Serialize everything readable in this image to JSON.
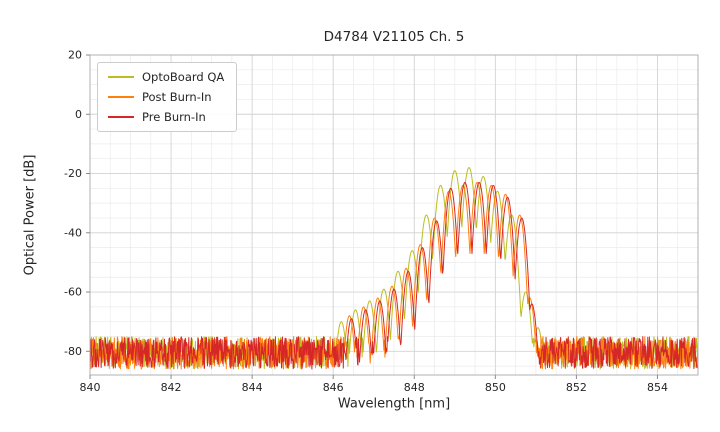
{
  "chart_data": {
    "type": "line",
    "title": "D4784 V21105 Ch. 5",
    "xlabel": "Wavelength [nm]",
    "ylabel": "Optical Power [dB]",
    "xlim": [
      840,
      855
    ],
    "ylim": [
      -88,
      20
    ],
    "xticks": [
      840,
      842,
      844,
      846,
      848,
      850,
      852,
      854
    ],
    "yticks": [
      20,
      0,
      -20,
      -40,
      -60,
      -80
    ],
    "minor_x_step": 0.5,
    "minor_y_step": 5,
    "grid": true,
    "legend_position": "upper left",
    "noise_floor_db": -80.5,
    "noise_half_range_db": 5.5,
    "mode_spacing_nm": 0.35,
    "sample_step_nm": 0.0125,
    "series": [
      {
        "name": "OptoBoard QA",
        "color": "#bcbd22",
        "dip_db": 20,
        "modes": [
          [
            846.2,
            -70
          ],
          [
            846.55,
            -66
          ],
          [
            846.9,
            -63
          ],
          [
            847.25,
            -59
          ],
          [
            847.6,
            -53
          ],
          [
            847.95,
            -46
          ],
          [
            848.3,
            -34
          ],
          [
            848.65,
            -24
          ],
          [
            849.0,
            -19
          ],
          [
            849.35,
            -18
          ],
          [
            849.7,
            -21
          ],
          [
            850.05,
            -26
          ],
          [
            850.4,
            -34
          ],
          [
            850.75,
            -60
          ],
          [
            851.05,
            -72
          ]
        ]
      },
      {
        "name": "Post Burn-In",
        "color": "#ff7f0e",
        "dip_db": 24,
        "modes": [
          [
            846.4,
            -68
          ],
          [
            846.75,
            -65
          ],
          [
            847.1,
            -62
          ],
          [
            847.45,
            -58
          ],
          [
            847.8,
            -52
          ],
          [
            848.15,
            -44
          ],
          [
            848.5,
            -35
          ],
          [
            848.85,
            -26
          ],
          [
            849.2,
            -24
          ],
          [
            849.55,
            -23
          ],
          [
            849.9,
            -24
          ],
          [
            850.25,
            -27
          ],
          [
            850.6,
            -34
          ],
          [
            850.85,
            -62
          ]
        ]
      },
      {
        "name": "Pre Burn-In",
        "color": "#d62728",
        "dip_db": 24,
        "modes": [
          [
            846.45,
            -69
          ],
          [
            846.8,
            -66
          ],
          [
            847.15,
            -63
          ],
          [
            847.5,
            -59
          ],
          [
            847.85,
            -53
          ],
          [
            848.2,
            -45
          ],
          [
            848.55,
            -36
          ],
          [
            848.9,
            -25
          ],
          [
            849.25,
            -23
          ],
          [
            849.6,
            -23
          ],
          [
            849.95,
            -24
          ],
          [
            850.3,
            -28
          ],
          [
            850.65,
            -35
          ],
          [
            850.9,
            -64
          ]
        ]
      }
    ]
  }
}
